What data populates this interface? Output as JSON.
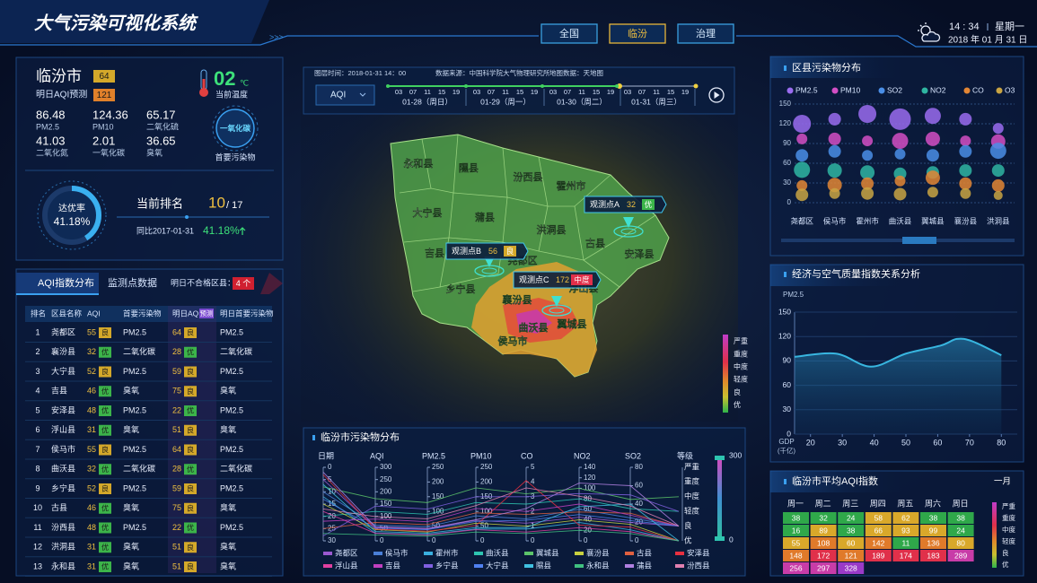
{
  "header": {
    "title": "大气污染可视化系统",
    "nav": [
      "全国",
      "临汾",
      "治理"
    ],
    "active_nav": 1,
    "time": "14 : 34",
    "weekday": "星期一",
    "date": "2018 年 01 月 31 日"
  },
  "city": {
    "name": "临汾市",
    "aqi": "64",
    "forecast_label": "明日AQI预测",
    "forecast": "121",
    "temperature": "02",
    "temperature_unit": "℃",
    "temperature_label": "当前温度",
    "pollutants": [
      {
        "value": "86.48",
        "name": "PM2.5"
      },
      {
        "value": "124.36",
        "name": "PM10"
      },
      {
        "value": "65.17",
        "name": "二氧化硫"
      },
      {
        "value": "41.03",
        "name": "二氧化氮"
      },
      {
        "value": "2.01",
        "name": "一氧化碳"
      },
      {
        "value": "36.65",
        "name": "臭氧"
      }
    ],
    "primary_pollutant": "一氧化碳",
    "primary_label": "首要污染物"
  },
  "ranking": {
    "rate_label": "达优率",
    "rate": {
      "value": 41.18,
      "label": "41.18%"
    },
    "rank_label": "当前排名",
    "rank": "10",
    "total": "/ 17",
    "compare_label": "同比2017-01-31",
    "compare": "41.18%"
  },
  "table": {
    "tabs": [
      "AQI指数分布",
      "监测点数据"
    ],
    "unqualified_label": "明日不合格区县：",
    "unqualified": "4 个",
    "columns": [
      "排名",
      "区县名称",
      "AQI",
      "首要污染物",
      "明日AQI",
      "预测",
      "明日首要污染物"
    ],
    "rows": [
      [
        "1",
        "尧都区",
        "55",
        "良",
        "PM2.5",
        "64",
        "良",
        "PM2.5"
      ],
      [
        "2",
        "襄汾县",
        "32",
        "优",
        "二氧化碳",
        "28",
        "优",
        "二氧化碳"
      ],
      [
        "3",
        "大宁县",
        "52",
        "良",
        "PM2.5",
        "59",
        "良",
        "PM2.5"
      ],
      [
        "4",
        "吉县",
        "46",
        "优",
        "臭氧",
        "75",
        "良",
        "臭氧"
      ],
      [
        "5",
        "安泽县",
        "48",
        "优",
        "PM2.5",
        "22",
        "优",
        "PM2.5"
      ],
      [
        "6",
        "浮山县",
        "31",
        "优",
        "臭氧",
        "51",
        "良",
        "臭氧"
      ],
      [
        "7",
        "侯马市",
        "55",
        "良",
        "PM2.5",
        "64",
        "良",
        "PM2.5"
      ],
      [
        "8",
        "曲沃县",
        "32",
        "优",
        "二氧化碳",
        "28",
        "优",
        "二氧化碳"
      ],
      [
        "9",
        "乡宁县",
        "52",
        "良",
        "PM2.5",
        "59",
        "良",
        "PM2.5"
      ],
      [
        "10",
        "古县",
        "46",
        "优",
        "臭氧",
        "75",
        "良",
        "臭氧"
      ],
      [
        "11",
        "汾西县",
        "48",
        "优",
        "PM2.5",
        "22",
        "优",
        "PM2.5"
      ],
      [
        "12",
        "洪洞县",
        "31",
        "优",
        "臭氧",
        "51",
        "良",
        "臭氧"
      ],
      [
        "13",
        "永和县",
        "31",
        "优",
        "臭氧",
        "51",
        "良",
        "臭氧"
      ]
    ]
  },
  "map": {
    "info": [
      "图层时间：2018-01-31 14：00",
      "数据来源：中国科学院大气物理研究所",
      "地图数据：天地图"
    ],
    "layer": "AQI",
    "hours": [
      "03",
      "07",
      "11",
      "15",
      "19"
    ],
    "days": [
      "01-28（周日）",
      "01-29（周一）",
      "01-30（周二）",
      "01-31（周三）"
    ],
    "counties": [
      "永和县",
      "隰县",
      "汾西县",
      "霍州市",
      "大宁县",
      "蒲县",
      "洪洞县",
      "古县",
      "安泽县",
      "吉县",
      "尧都区",
      "乡宁县",
      "襄汾县",
      "浮山县",
      "曲沃县",
      "翼城县",
      "侯马市"
    ],
    "stations": [
      {
        "name": "观测点A",
        "aqi": "32",
        "grade": "优"
      },
      {
        "name": "观测点B",
        "aqi": "56",
        "grade": "良"
      },
      {
        "name": "观测点C",
        "aqi": "172",
        "grade": "中度"
      }
    ],
    "legend": [
      "严重",
      "重度",
      "中度",
      "轻度",
      "良",
      "优"
    ]
  },
  "chart_data": [
    {
      "type": "bubble",
      "title": "区县污染物分布",
      "categories": [
        "尧都区",
        "侯马市",
        "霍州市",
        "曲沃县",
        "翼城县",
        "襄汾县",
        "洪洞县"
      ],
      "ylim": [
        0,
        150
      ],
      "yticks": [
        0,
        30,
        60,
        90,
        120,
        150
      ],
      "grid": true,
      "series": [
        {
          "name": "PM2.5",
          "color": "#9a6cf0",
          "values": [
            120,
            127,
            135,
            127,
            132,
            127,
            113
          ],
          "sizes": [
            10,
            7,
            10,
            12,
            9,
            7,
            6
          ]
        },
        {
          "name": "PM10",
          "color": "#d34fc4",
          "values": [
            97,
            97,
            94,
            94,
            97,
            94,
            93
          ],
          "sizes": [
            6,
            7,
            6,
            9,
            8,
            6,
            8
          ]
        },
        {
          "name": "SO2",
          "color": "#4a8ee6",
          "values": [
            72,
            78,
            72,
            74,
            72,
            78,
            79
          ],
          "sizes": [
            7,
            7,
            6,
            6,
            7,
            7,
            9
          ]
        },
        {
          "name": "NO2",
          "color": "#2fb5a2",
          "values": [
            50,
            49,
            46,
            44,
            46,
            49,
            49
          ],
          "sizes": [
            9,
            8,
            8,
            7,
            7,
            7,
            7
          ]
        },
        {
          "name": "CO",
          "color": "#e38634",
          "values": [
            26,
            27,
            29,
            33,
            38,
            29,
            26
          ],
          "sizes": [
            6,
            8,
            7,
            6,
            8,
            7,
            7
          ]
        },
        {
          "name": "O3",
          "color": "#c9a443",
          "values": [
            12,
            14,
            14,
            13,
            16,
            14,
            11
          ],
          "sizes": [
            7,
            6,
            7,
            7,
            6,
            6,
            5
          ]
        }
      ]
    },
    {
      "type": "line",
      "title": "经济与空气质量指数关系分析",
      "ylabel": "PM2.5",
      "xlabel": "GDP",
      "xlabel_unit": "(千亿)",
      "x": [
        15,
        28,
        39,
        50,
        61,
        66,
        71,
        80
      ],
      "values": [
        95,
        99,
        83,
        99,
        109,
        117,
        114,
        97
      ],
      "color": "#38b6e0",
      "xlim": [
        15,
        85
      ],
      "xticks": [
        20,
        30,
        40,
        50,
        60,
        70,
        80
      ],
      "ylim": [
        0,
        150
      ],
      "yticks": [
        0,
        30,
        60,
        90,
        120,
        150
      ],
      "grid": true
    },
    {
      "type": "parallel",
      "title": "临汾市污染物分布",
      "axes": [
        {
          "name": "日期",
          "lim": [
            30,
            0
          ],
          "ticks": [
            0,
            5,
            10,
            15,
            20,
            25,
            30
          ]
        },
        {
          "name": "AQI",
          "lim": [
            0,
            300
          ],
          "ticks": [
            300,
            250,
            200,
            150,
            100,
            50,
            0
          ]
        },
        {
          "name": "PM2.5",
          "lim": [
            0,
            250
          ],
          "ticks": [
            250,
            200,
            150,
            100,
            50,
            0
          ]
        },
        {
          "name": "PM10",
          "lim": [
            0,
            250
          ],
          "ticks": [
            250,
            200,
            150,
            100,
            50,
            0
          ]
        },
        {
          "name": "CO",
          "lim": [
            0,
            5
          ],
          "ticks": [
            5,
            4,
            3,
            2,
            1,
            0
          ]
        },
        {
          "name": "NO2",
          "lim": [
            0,
            140
          ],
          "ticks": [
            140,
            120,
            100,
            80,
            60,
            40,
            20,
            0
          ]
        },
        {
          "name": "SO2",
          "lim": [
            0,
            80
          ],
          "ticks": [
            80,
            60,
            40,
            20,
            0
          ]
        },
        {
          "name": "等级",
          "categories": [
            "严重",
            "重度",
            "中度",
            "轻度",
            "良",
            "优"
          ]
        }
      ],
      "visual_map": [
        0,
        300
      ],
      "series": [
        {
          "name": "尧都区",
          "color": "#9b59d0",
          "values": [
            5,
            55,
            40,
            70,
            1.2,
            45,
            20
          ],
          "grade": "良"
        },
        {
          "name": "侯马市",
          "color": "#4a7fd8",
          "values": [
            10,
            64,
            48,
            85,
            1.5,
            60,
            25
          ],
          "grade": "良"
        },
        {
          "name": "霍州市",
          "color": "#3ab0e0",
          "values": [
            12,
            32,
            22,
            40,
            0.8,
            35,
            12
          ],
          "grade": "优"
        },
        {
          "name": "曲沃县",
          "color": "#2ec4b0",
          "values": [
            20,
            120,
            90,
            130,
            2.5,
            80,
            35
          ],
          "grade": "轻度"
        },
        {
          "name": "翼城县",
          "color": "#5cc46a",
          "values": [
            8,
            172,
            130,
            180,
            3.2,
            100,
            45
          ],
          "grade": "中度"
        },
        {
          "name": "襄汾县",
          "color": "#c8d040",
          "values": [
            15,
            46,
            30,
            60,
            1.0,
            40,
            18
          ],
          "grade": "优"
        },
        {
          "name": "古县",
          "color": "#e06040",
          "values": [
            25,
            75,
            55,
            95,
            1.8,
            55,
            30
          ],
          "grade": "良"
        },
        {
          "name": "安泽县",
          "color": "#e83040",
          "values": [
            3,
            48,
            33,
            52,
            4.1,
            30,
            15
          ],
          "grade": "优"
        },
        {
          "name": "浮山县",
          "color": "#e040a0",
          "values": [
            18,
            31,
            20,
            38,
            0.6,
            25,
            10
          ],
          "grade": "优"
        },
        {
          "name": "吉县",
          "color": "#c040c0",
          "values": [
            22,
            89,
            65,
            110,
            2.0,
            70,
            28
          ],
          "grade": "良"
        },
        {
          "name": "乡宁县",
          "color": "#8060e0",
          "values": [
            28,
            142,
            108,
            150,
            3.0,
            90,
            50
          ],
          "grade": "轻度"
        },
        {
          "name": "大宁县",
          "color": "#5080f0",
          "values": [
            13,
            52,
            38,
            66,
            1.4,
            50,
            22
          ],
          "grade": "良"
        },
        {
          "name": "隰县",
          "color": "#40c0e0",
          "values": [
            7,
            38,
            26,
            45,
            0.9,
            65,
            40
          ],
          "grade": "优"
        },
        {
          "name": "永和县",
          "color": "#40c080",
          "values": [
            27,
            24,
            16,
            30,
            0.5,
            20,
            8
          ],
          "grade": "优"
        },
        {
          "name": "蒲县",
          "color": "#b080e0",
          "values": [
            2,
            58,
            42,
            72,
            2.2,
            110,
            60
          ],
          "grade": "良"
        },
        {
          "name": "汾西县",
          "color": "#e080b0",
          "values": [
            17,
            99,
            75,
            120,
            3.6,
            85,
            38
          ],
          "grade": "良"
        }
      ]
    },
    {
      "type": "heatmap",
      "title": "临汾市平均AQI指数",
      "month": "一月",
      "weekdays": [
        "周一",
        "周二",
        "周三",
        "周四",
        "周五",
        "周六",
        "周日"
      ],
      "values": [
        [
          38,
          32,
          24,
          58,
          62,
          38,
          38
        ],
        [
          16,
          89,
          38,
          66,
          93,
          99,
          24
        ],
        [
          55,
          108,
          60,
          142,
          11,
          136,
          80
        ],
        [
          148,
          172,
          121,
          189,
          174,
          183,
          289
        ],
        [
          256,
          297,
          328
        ]
      ],
      "legend": [
        "严重",
        "重度",
        "中度",
        "轻度",
        "良",
        "优"
      ]
    }
  ]
}
